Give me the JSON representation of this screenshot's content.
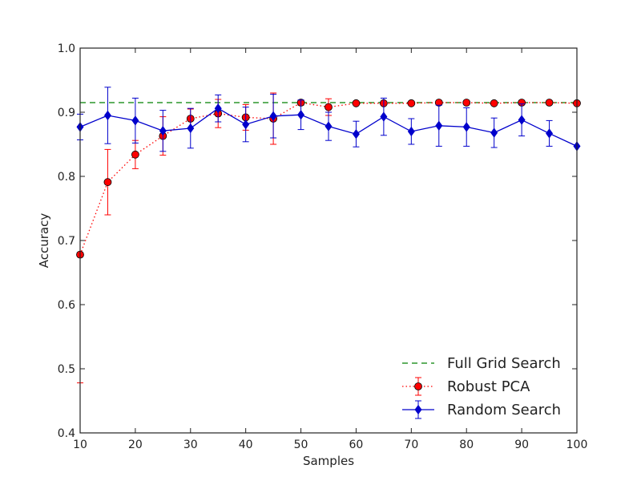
{
  "chart_data": {
    "type": "line",
    "xlabel": "Samples",
    "ylabel": "Accuracy",
    "xlim": [
      10,
      100
    ],
    "ylim": [
      0.4,
      1.0
    ],
    "xticks": [
      "10",
      "20",
      "30",
      "40",
      "50",
      "60",
      "70",
      "80",
      "90",
      "100"
    ],
    "yticks": [
      "0.4",
      "0.5",
      "0.6",
      "0.7",
      "0.8",
      "0.9",
      "1.0"
    ],
    "grid": false,
    "legend_position": "lower-right",
    "series": [
      {
        "name": "Full Grid Search",
        "style": "dashed",
        "color": "#008000",
        "x": [
          10,
          100
        ],
        "y": [
          0.915,
          0.915
        ]
      },
      {
        "name": "Robust PCA",
        "style": "dotted",
        "marker": "circle",
        "color": "#ff0000",
        "x": [
          10,
          15,
          20,
          25,
          30,
          35,
          40,
          45,
          50,
          55,
          60,
          65,
          70,
          75,
          80,
          85,
          90,
          95,
          100
        ],
        "y": [
          0.678,
          0.791,
          0.834,
          0.863,
          0.89,
          0.898,
          0.892,
          0.89,
          0.915,
          0.908,
          0.914,
          0.914,
          0.914,
          0.915,
          0.915,
          0.914,
          0.915,
          0.915,
          0.914
        ],
        "err": [
          0.2,
          0.051,
          0.022,
          0.03,
          0.015,
          0.022,
          0.02,
          0.04,
          0.004,
          0.013,
          0.002,
          0.002,
          0.002,
          0.001,
          0.001,
          0.001,
          0.001,
          0.001,
          0.001
        ]
      },
      {
        "name": "Random Search",
        "style": "solid",
        "marker": "diamond",
        "color": "#0000cc",
        "x": [
          10,
          15,
          20,
          25,
          30,
          35,
          40,
          45,
          50,
          55,
          60,
          65,
          70,
          75,
          80,
          85,
          90,
          95,
          100
        ],
        "y": [
          0.877,
          0.895,
          0.887,
          0.871,
          0.875,
          0.906,
          0.881,
          0.894,
          0.896,
          0.878,
          0.866,
          0.893,
          0.87,
          0.879,
          0.877,
          0.868,
          0.888,
          0.867,
          0.847
        ],
        "err": [
          0.02,
          0.044,
          0.035,
          0.032,
          0.031,
          0.021,
          0.027,
          0.034,
          0.023,
          0.022,
          0.02,
          0.029,
          0.02,
          0.032,
          0.03,
          0.023,
          0.025,
          0.02,
          0.0
        ]
      }
    ]
  }
}
